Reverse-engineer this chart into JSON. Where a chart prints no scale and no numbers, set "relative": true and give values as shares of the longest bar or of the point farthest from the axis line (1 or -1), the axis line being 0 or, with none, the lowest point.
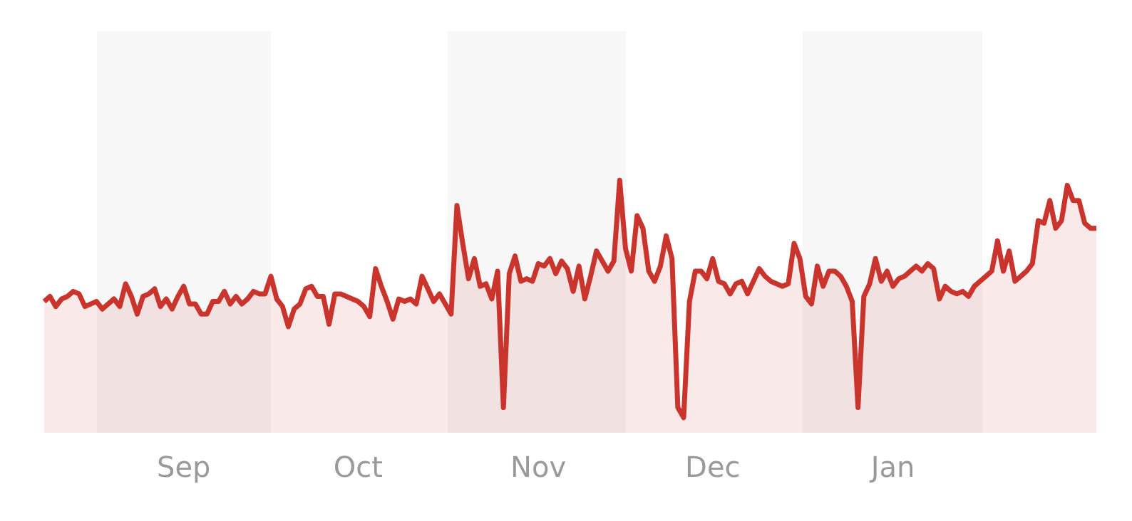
{
  "chart_data": {
    "type": "area",
    "relative": true,
    "legend": false,
    "grid": false,
    "marker": "none",
    "categories": [
      null,
      null,
      null,
      null,
      null,
      null,
      null,
      null,
      null,
      null,
      null,
      null,
      null,
      null,
      null,
      null,
      null,
      null,
      null,
      null,
      null,
      null,
      null,
      null,
      "Sep",
      null,
      null,
      null,
      null,
      null,
      null,
      null,
      null,
      null,
      null,
      null,
      null,
      null,
      null,
      null,
      null,
      null,
      null,
      null,
      null,
      null,
      null,
      null,
      null,
      null,
      null,
      null,
      null,
      null,
      "Oct",
      null,
      null,
      null,
      null,
      null,
      null,
      null,
      null,
      null,
      null,
      null,
      null,
      null,
      null,
      null,
      null,
      null,
      null,
      null,
      null,
      null,
      null,
      null,
      null,
      null,
      null,
      null,
      null,
      null,
      null,
      "Nov",
      null,
      null,
      null,
      null,
      null,
      null,
      null,
      null,
      null,
      null,
      null,
      null,
      null,
      null,
      null,
      null,
      null,
      null,
      null,
      null,
      null,
      null,
      null,
      null,
      null,
      null,
      null,
      null,
      null,
      "Dec",
      null,
      null,
      null,
      null,
      null,
      null,
      null,
      null,
      null,
      null,
      null,
      null,
      null,
      null,
      null,
      null,
      null,
      null,
      null,
      null,
      null,
      null,
      null,
      null,
      null,
      null,
      null,
      null,
      null,
      null,
      "Jan",
      null,
      null,
      null,
      null,
      null,
      null,
      null,
      null,
      null,
      null,
      null,
      null,
      null,
      null,
      null,
      null,
      null,
      null,
      null,
      null,
      null,
      null,
      null,
      null,
      null,
      null,
      null,
      null,
      null,
      null,
      null,
      null,
      null,
      null,
      null
    ],
    "series": [
      {
        "color": "#c9342c",
        "values": [
          0.52,
          0.54,
          0.5,
          0.53,
          0.54,
          0.56,
          0.55,
          0.5,
          0.51,
          0.52,
          0.49,
          0.51,
          0.53,
          0.5,
          0.59,
          0.54,
          0.47,
          0.54,
          0.55,
          0.57,
          0.5,
          0.53,
          0.49,
          0.54,
          0.58,
          0.51,
          0.51,
          0.47,
          0.47,
          0.52,
          0.52,
          0.56,
          0.51,
          0.54,
          0.51,
          0.53,
          0.56,
          0.55,
          0.55,
          0.62,
          0.53,
          0.5,
          0.42,
          0.49,
          0.51,
          0.57,
          0.58,
          0.54,
          0.54,
          0.43,
          0.55,
          0.55,
          0.54,
          0.53,
          0.52,
          0.5,
          0.46,
          0.65,
          0.58,
          0.52,
          0.45,
          0.53,
          0.52,
          0.53,
          0.51,
          0.62,
          0.57,
          0.52,
          0.55,
          0.51,
          0.47,
          0.9,
          0.75,
          0.61,
          0.69,
          0.58,
          0.59,
          0.53,
          0.64,
          0.1,
          0.63,
          0.7,
          0.6,
          0.61,
          0.6,
          0.67,
          0.66,
          0.69,
          0.63,
          0.68,
          0.65,
          0.56,
          0.66,
          0.53,
          0.62,
          0.72,
          0.68,
          0.64,
          0.68,
          1.0,
          0.73,
          0.64,
          0.86,
          0.81,
          0.64,
          0.6,
          0.66,
          0.78,
          0.69,
          0.1,
          0.06,
          0.52,
          0.64,
          0.64,
          0.61,
          0.69,
          0.6,
          0.59,
          0.55,
          0.59,
          0.6,
          0.55,
          0.6,
          0.65,
          0.62,
          0.6,
          0.59,
          0.58,
          0.59,
          0.75,
          0.69,
          0.54,
          0.51,
          0.66,
          0.58,
          0.64,
          0.64,
          0.62,
          0.58,
          0.52,
          0.1,
          0.54,
          0.59,
          0.69,
          0.6,
          0.64,
          0.58,
          0.61,
          0.62,
          0.64,
          0.66,
          0.64,
          0.67,
          0.65,
          0.53,
          0.58,
          0.56,
          0.55,
          0.56,
          0.54,
          0.58,
          0.6,
          0.62,
          0.64,
          0.76,
          0.64,
          0.72,
          0.6,
          0.62,
          0.64,
          0.67,
          0.84,
          0.83,
          0.92,
          0.81,
          0.84,
          0.98,
          0.92,
          0.92,
          0.83,
          0.81,
          0.81
        ]
      }
    ]
  }
}
